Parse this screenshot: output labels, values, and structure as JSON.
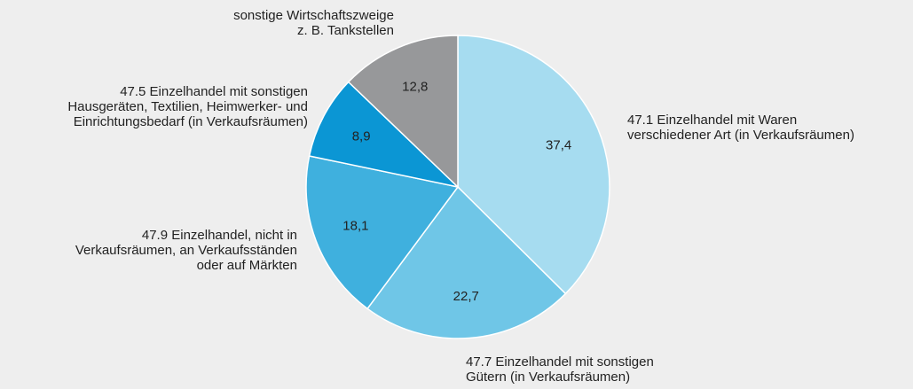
{
  "chart_data": {
    "type": "pie",
    "categories": [
      "47.1 Einzelhandel mit Waren\nverschiedener Art (in Verkaufsräumen)",
      "47.7 Einzelhandel mit sonstigen\nGütern (in Verkaufsräumen)",
      "47.9 Einzelhandel, nicht in\nVerkaufsräumen, an Verkaufsständen\noder auf Märkten",
      "47.5 Einzelhandel mit sonstigen\nHausgeräten, Textilien, Heimwerker- und\nEinrichtungsbedarf (in Verkaufsräumen)",
      "sonstige Wirtschaftszweige\nz. B. Tankstellen"
    ],
    "values": [
      37.4,
      22.7,
      18.1,
      8.9,
      12.8
    ],
    "value_labels": [
      "37,4",
      "22,7",
      "18,1",
      "8,9",
      "12,8"
    ],
    "colors": [
      "#a6dcf0",
      "#6fc6e7",
      "#3fb0de",
      "#0b96d4",
      "#97989a"
    ]
  }
}
